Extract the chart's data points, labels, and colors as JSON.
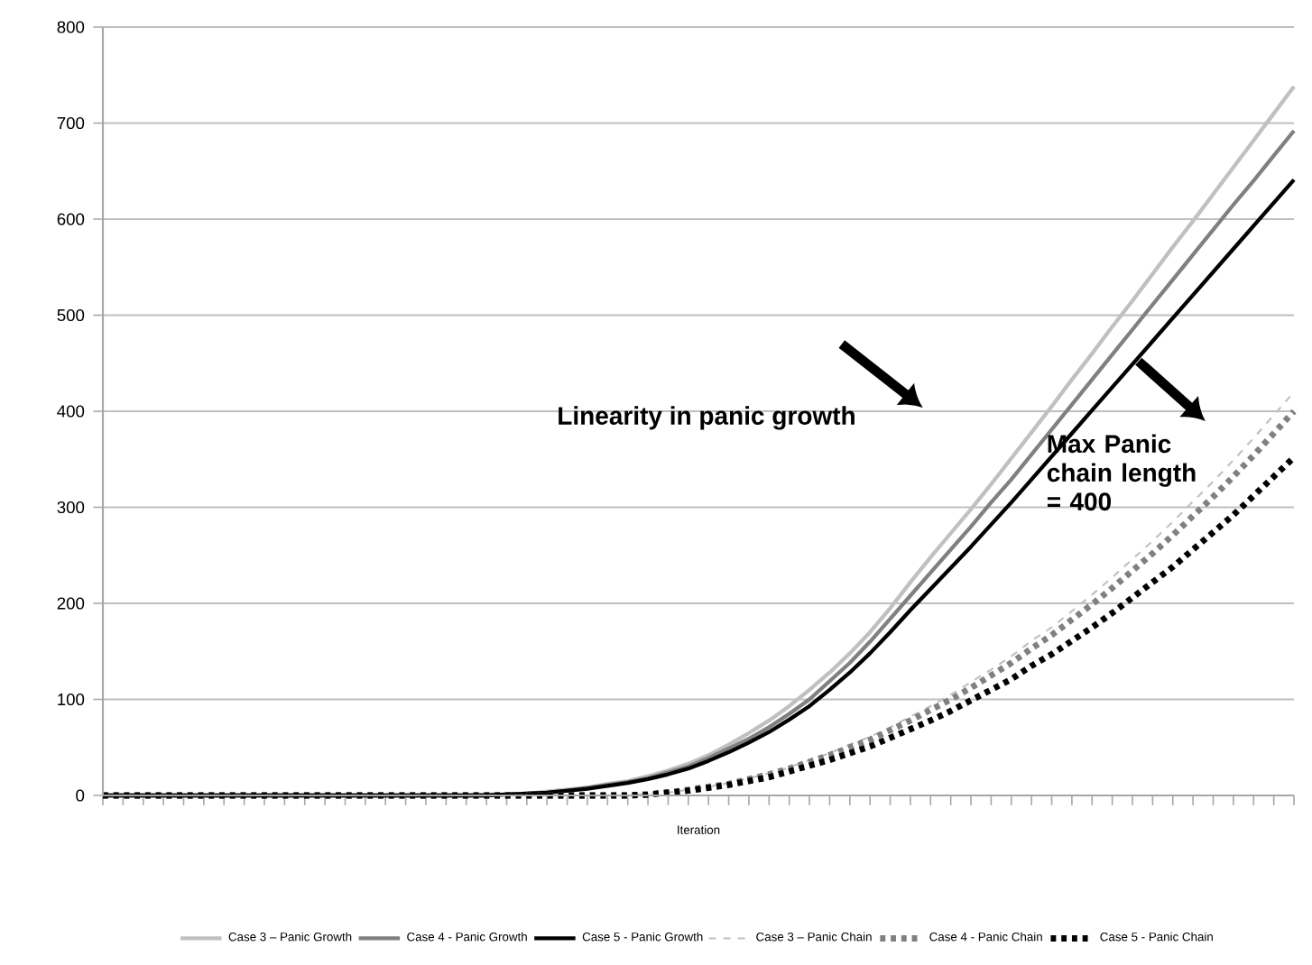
{
  "chart_data": {
    "type": "line",
    "xlabel": "Iteration",
    "categories": [
      null,
      null,
      null,
      null,
      null,
      null,
      null,
      null,
      null,
      null,
      null,
      null,
      null,
      null,
      null,
      null,
      null,
      null,
      null,
      null,
      null,
      null,
      null,
      null,
      null,
      null,
      null,
      null,
      null,
      null,
      null,
      null,
      null,
      null,
      null,
      null,
      null,
      null,
      null,
      null,
      null,
      null,
      null,
      null,
      null,
      null,
      null,
      null,
      null,
      null,
      null,
      null,
      null,
      null,
      null,
      null,
      null,
      null,
      null,
      null
    ],
    "series": [
      {
        "name": "Case 3 – Panic Growth",
        "color": "#c0c0c0",
        "line_style": "solid",
        "values": [
          0,
          0,
          0,
          0,
          0,
          0,
          0,
          0,
          0,
          0,
          0,
          0,
          0,
          0,
          0,
          0,
          0,
          0,
          0,
          1,
          1,
          2,
          4,
          6,
          8,
          12,
          15,
          20,
          26,
          33,
          42,
          53,
          65,
          78,
          93,
          110,
          128,
          148,
          170,
          195,
          222,
          248,
          273,
          298,
          324,
          351,
          378,
          405,
          433,
          460,
          488,
          515,
          543,
          571,
          598,
          626,
          654,
          682,
          710,
          738
        ]
      },
      {
        "name": "Case 4 -  Panic Growth",
        "color": "#808080",
        "line_style": "solid",
        "values": [
          0,
          0,
          0,
          0,
          0,
          0,
          0,
          0,
          0,
          0,
          0,
          0,
          0,
          0,
          0,
          0,
          0,
          0,
          0,
          0,
          1,
          2,
          3,
          5,
          8,
          11,
          14,
          18,
          24,
          30,
          39,
          49,
          59,
          71,
          85,
          100,
          119,
          138,
          160,
          184,
          208,
          232,
          256,
          280,
          305,
          329,
          355,
          381,
          407,
          433,
          459,
          485,
          511,
          537,
          563,
          589,
          615,
          640,
          666,
          692
        ]
      },
      {
        "name": "Case 5 - Panic Growth",
        "color": "#000000",
        "line_style": "solid",
        "values": [
          0,
          0,
          0,
          0,
          0,
          0,
          0,
          0,
          0,
          0,
          0,
          0,
          0,
          0,
          0,
          0,
          0,
          0,
          0,
          0,
          1,
          2,
          3,
          5,
          7,
          10,
          13,
          17,
          22,
          28,
          36,
          45,
          55,
          66,
          79,
          93,
          110,
          128,
          148,
          170,
          193,
          215,
          237,
          259,
          282,
          305,
          329,
          353,
          377,
          401,
          425,
          449,
          473,
          497,
          521,
          545,
          569,
          593,
          617,
          641
        ]
      },
      {
        "name": "Case 3 – Panic Chain",
        "color": "#c0c0c0",
        "line_style": "dashed",
        "values": [
          0,
          0,
          0,
          0,
          0,
          0,
          0,
          0,
          0,
          0,
          0,
          0,
          0,
          0,
          0,
          0,
          0,
          0,
          0,
          0,
          0,
          0,
          0,
          0,
          0,
          0,
          0,
          2,
          3,
          6,
          9,
          13,
          18,
          23,
          29,
          37,
          44,
          53,
          61,
          71,
          82,
          93,
          105,
          118,
          131,
          145,
          161,
          175,
          192,
          209,
          227,
          246,
          265,
          285,
          306,
          327,
          349,
          372,
          396,
          420
        ]
      },
      {
        "name": "Case 4 - Panic Chain",
        "color": "#808080",
        "line_style": "dotted",
        "values": [
          0,
          0,
          0,
          0,
          0,
          0,
          0,
          0,
          0,
          0,
          0,
          0,
          0,
          0,
          0,
          0,
          0,
          0,
          0,
          0,
          0,
          0,
          0,
          0,
          0,
          0,
          0,
          1,
          3,
          6,
          9,
          12,
          17,
          22,
          28,
          35,
          42,
          50,
          58,
          68,
          78,
          89,
          100,
          112,
          125,
          138,
          153,
          167,
          183,
          199,
          216,
          234,
          252,
          271,
          291,
          311,
          332,
          354,
          377,
          400
        ]
      },
      {
        "name": "Case 5 - Panic Chain",
        "color": "#000000",
        "line_style": "dotted",
        "values": [
          0,
          0,
          0,
          0,
          0,
          0,
          0,
          0,
          0,
          0,
          0,
          0,
          0,
          0,
          0,
          0,
          0,
          0,
          0,
          0,
          0,
          0,
          0,
          0,
          0,
          0,
          0,
          1,
          3,
          5,
          8,
          11,
          15,
          19,
          25,
          31,
          37,
          44,
          51,
          60,
          69,
          78,
          88,
          99,
          110,
          121,
          135,
          147,
          161,
          175,
          190,
          206,
          222,
          238,
          256,
          274,
          292,
          312,
          332,
          352
        ]
      }
    ],
    "ylim": [
      0,
      800
    ],
    "yticks": [
      0,
      100,
      200,
      300,
      400,
      500,
      600,
      700,
      800
    ],
    "grid": "y",
    "legend": "bottom",
    "marker": "none",
    "tick_labels": "y",
    "annotations": [
      "Linearity in panic growth",
      "Max Panic chain length = 400"
    ]
  }
}
